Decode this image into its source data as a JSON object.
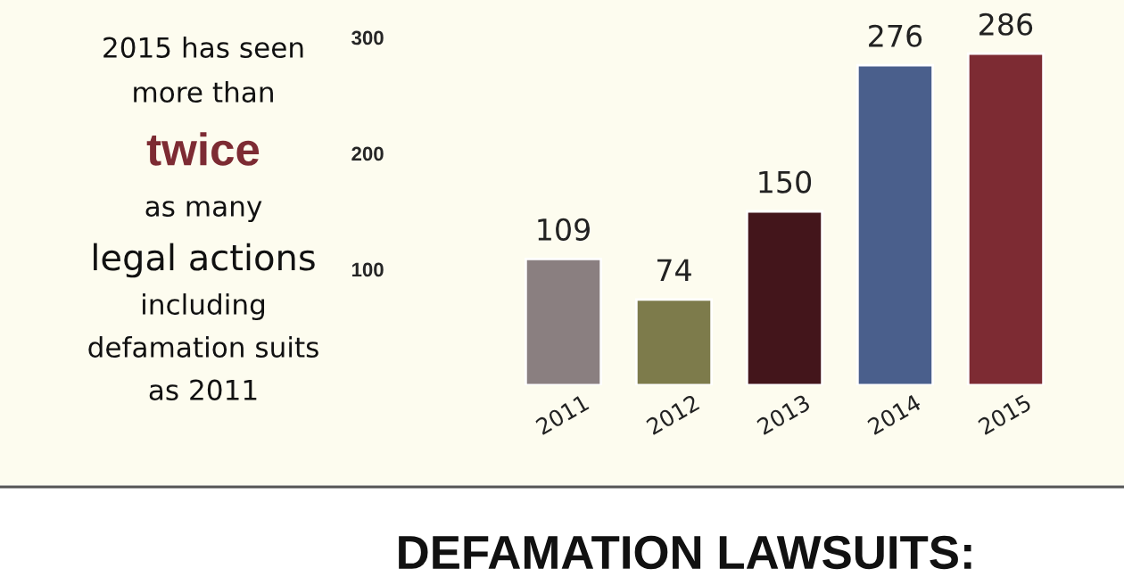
{
  "chart_data": {
    "type": "bar",
    "categories": [
      "2011",
      "2012",
      "2013",
      "2014",
      "2015"
    ],
    "values": [
      109,
      74,
      150,
      276,
      286
    ],
    "colors": [
      "#8a7f80",
      "#7d7b4b",
      "#43151b",
      "#4a5f8c",
      "#7d2b33"
    ],
    "ylim": [
      0,
      300
    ],
    "yticks": [
      100,
      200,
      300
    ],
    "data_labels": true,
    "grid": false,
    "legend": false,
    "annotations": [
      "2015 has seen",
      "more than",
      "twice",
      "as many",
      "legal actions",
      "including",
      "defamation suits",
      "as 2011",
      "DEFAMATION LAWSUITS:"
    ]
  }
}
